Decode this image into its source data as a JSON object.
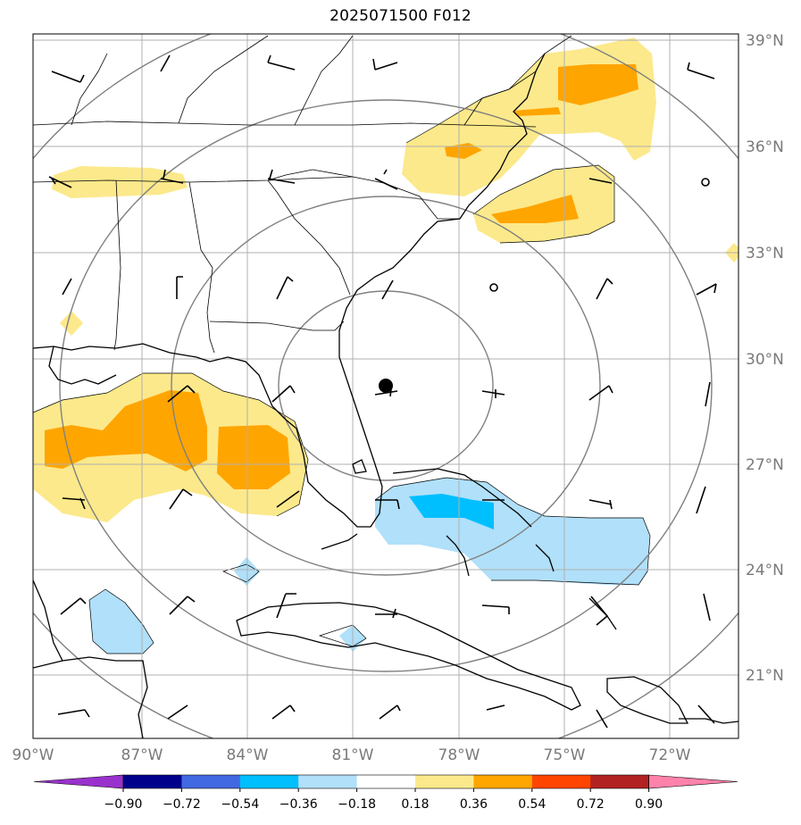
{
  "title": "2025071500 F012",
  "latitude_labels": [
    "39°N",
    "36°N",
    "33°N",
    "30°N",
    "27°N",
    "24°N",
    "21°N"
  ],
  "longitude_labels": [
    "90°W",
    "87°W",
    "84°W",
    "81°W",
    "78°W",
    "75°W",
    "72°W"
  ],
  "colorbar": {
    "tick_labels": [
      "−0.90",
      "−0.72",
      "−0.54",
      "−0.36",
      "−0.18",
      "0.18",
      "0.36",
      "0.54",
      "0.72",
      "0.90"
    ],
    "colors": [
      "#9932cc",
      "#00008b",
      "#4169e1",
      "#00bfff",
      "#b0e0fa",
      "#ffffff",
      "#fce98b",
      "#ffa500",
      "#ff4500",
      "#b22222",
      "#ff82ab"
    ]
  },
  "colors": {
    "light_yellow": "#fce98b",
    "orange": "#ffa500",
    "light_blue": "#b0e0fa",
    "deep_sky_blue": "#00bfff",
    "gridline": "#b0b0b0",
    "range_ring": "#808080",
    "coastline": "#000000"
  },
  "center_marker": "storm-center-dot"
}
